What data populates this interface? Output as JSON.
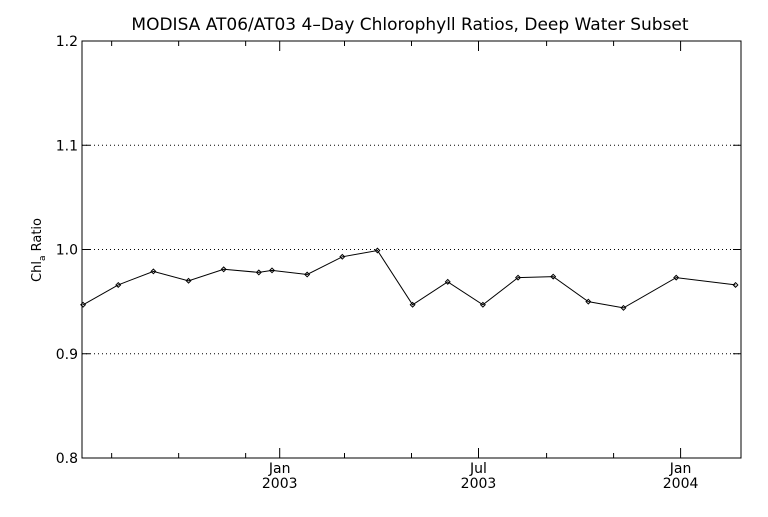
{
  "chart_data": {
    "type": "line",
    "title": "MODISA AT06/AT03 4–Day Chlorophyll Ratios, Deep Water Subset",
    "ylabel": {
      "main": "Chl",
      "sub": "a",
      "rest": " Ratio"
    },
    "xlabel": "",
    "ylim": [
      0.8,
      1.2
    ],
    "xlim": [
      "2002-07-05",
      "2004-02-25"
    ],
    "yticks": [
      0.8,
      0.9,
      1.0,
      1.1,
      1.2
    ],
    "ytick_labels": [
      "0.8",
      "0.9",
      "1.0",
      "1.1",
      "1.2"
    ],
    "grid": {
      "y_dotted_at": [
        0.9,
        1.0,
        1.1
      ]
    },
    "xticks_major": [
      {
        "date": "2003-01-01",
        "line1": "Jan",
        "line2": "2003"
      },
      {
        "date": "2003-07-01",
        "line1": "Jul",
        "line2": "2003"
      },
      {
        "date": "2004-01-01",
        "line1": "Jan",
        "line2": "2004"
      }
    ],
    "xticks_minor": [
      "2002-08-01",
      "2002-10-01",
      "2002-12-01",
      "2003-03-01",
      "2003-05-01",
      "2003-09-01",
      "2003-11-01"
    ],
    "series": [
      {
        "x": [
          "2002-07-06",
          "2002-08-07",
          "2002-09-08",
          "2002-10-10",
          "2002-11-11",
          "2002-12-13",
          "2002-12-25",
          "2003-01-26",
          "2003-02-27",
          "2003-03-31",
          "2003-05-02",
          "2003-06-03",
          "2003-07-05",
          "2003-08-06",
          "2003-09-07",
          "2003-10-09",
          "2003-11-10",
          "2003-12-28",
          "2004-02-20"
        ],
        "y": [
          0.947,
          0.966,
          0.979,
          0.97,
          0.981,
          0.978,
          0.98,
          0.976,
          0.993,
          0.999,
          0.947,
          0.969,
          0.947,
          0.973,
          0.974,
          0.95,
          0.944,
          0.973,
          0.966
        ]
      }
    ]
  }
}
